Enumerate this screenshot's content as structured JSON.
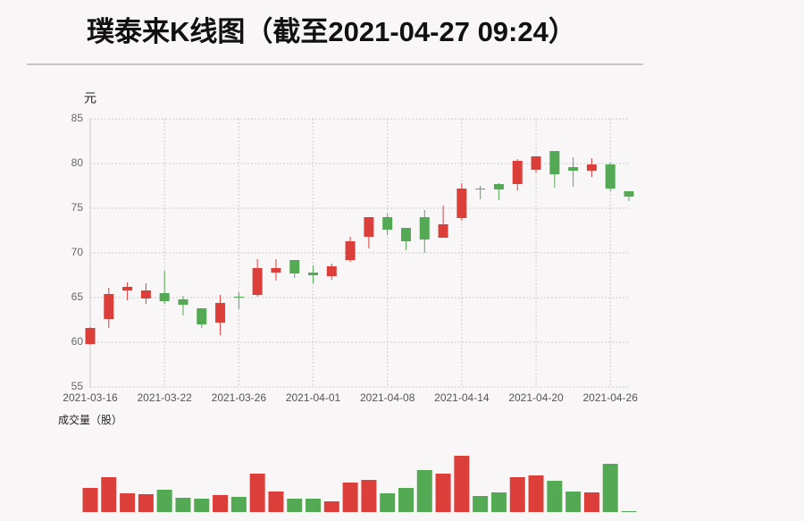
{
  "chart_data": [
    {
      "type": "candlestick",
      "title": "璞泰来K线图（截至2021-04-27 09:24）",
      "y_label": "元",
      "categories": [
        "2021-03-16",
        null,
        null,
        null,
        "2021-03-22",
        null,
        null,
        null,
        "2021-03-26",
        null,
        null,
        null,
        "2021-04-01",
        null,
        null,
        null,
        "2021-04-08",
        null,
        null,
        null,
        "2021-04-14",
        null,
        null,
        null,
        "2021-04-20",
        null,
        null,
        null,
        "2021-04-26",
        null
      ],
      "open": [
        59.8,
        62.6,
        65.8,
        64.9,
        65.5,
        64.8,
        63.8,
        62.2,
        65.1,
        65.3,
        67.8,
        69.2,
        67.8,
        67.4,
        69.2,
        71.8,
        74.0,
        72.8,
        74.0,
        71.7,
        73.9,
        77.2,
        77.7,
        77.7,
        79.3,
        81.4,
        79.6,
        79.2,
        79.9,
        76.9
      ],
      "high": [
        61.7,
        66.1,
        66.7,
        66.6,
        68.0,
        65.2,
        63.8,
        65.3,
        65.6,
        69.3,
        69.3,
        69.2,
        68.6,
        68.8,
        71.8,
        74.0,
        74.4,
        72.8,
        74.8,
        75.3,
        77.8,
        77.5,
        77.8,
        80.5,
        80.8,
        81.4,
        80.7,
        80.6,
        80.1,
        76.9
      ],
      "low": [
        59.7,
        61.6,
        64.7,
        64.3,
        64.3,
        63.0,
        61.6,
        60.8,
        63.7,
        65.1,
        66.9,
        67.2,
        66.6,
        67.0,
        69.0,
        70.5,
        72.0,
        70.3,
        70.0,
        71.7,
        73.6,
        76.0,
        75.9,
        77.0,
        79.0,
        77.3,
        77.4,
        78.5,
        76.9,
        75.8
      ],
      "close": [
        61.6,
        65.4,
        66.2,
        65.8,
        64.6,
        64.2,
        62.0,
        64.4,
        65.0,
        68.3,
        68.3,
        67.7,
        67.5,
        68.5,
        71.3,
        74.0,
        72.6,
        71.3,
        71.5,
        73.2,
        77.2,
        77.1,
        77.1,
        80.3,
        80.8,
        78.8,
        79.2,
        79.9,
        77.2,
        76.3
      ],
      "ylim": [
        55,
        85
      ],
      "yticks": [
        55,
        60,
        65,
        70,
        75,
        80,
        85
      ],
      "grid": true,
      "up_color": "#dc3f3a",
      "down_color": "#53a954"
    },
    {
      "type": "bar",
      "title": "成交量（股）",
      "values": [
        27,
        39,
        21,
        20,
        25,
        16,
        15,
        19,
        17,
        43,
        23,
        15,
        15,
        12,
        33,
        36,
        21,
        27,
        47,
        43,
        63,
        18,
        22,
        39,
        41,
        35,
        23,
        22,
        54,
        1
      ]
    }
  ]
}
